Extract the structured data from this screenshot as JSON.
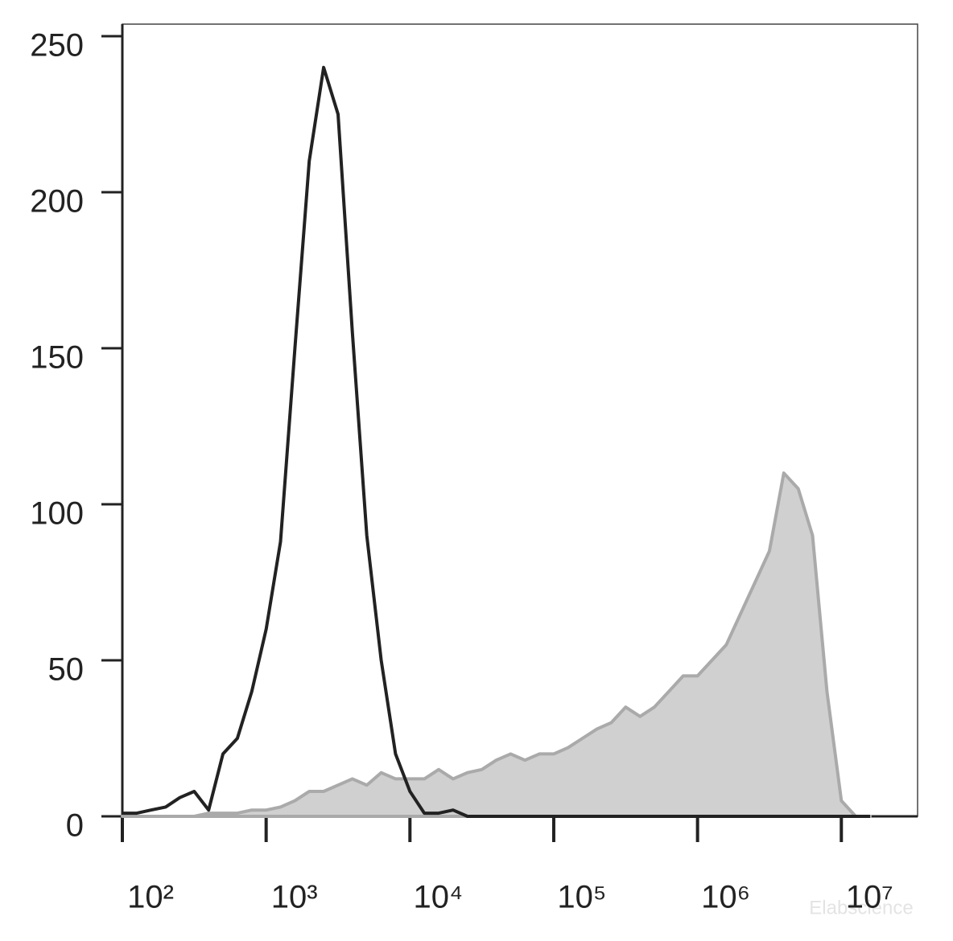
{
  "chart_data": {
    "type": "line",
    "x": [
      100,
      126,
      158,
      200,
      251,
      316,
      398,
      501,
      631,
      794,
      1000,
      1259,
      1585,
      1995,
      2512,
      3162,
      3981,
      5012,
      6310,
      7943,
      10000,
      12589,
      15849,
      19953,
      25119,
      31623,
      39811,
      50119,
      63096,
      79433,
      100000,
      125893,
      158489,
      199526,
      251189,
      316228,
      398107,
      501187,
      630957,
      794328,
      1000000,
      1258925,
      1584893,
      1995262,
      2511886,
      3162278,
      3981072,
      5011872,
      6309573,
      7943282,
      10000000,
      12589254,
      15848932
    ],
    "series": [
      {
        "color": "#222222",
        "values": [
          1,
          1,
          2,
          3,
          6,
          8,
          2,
          20,
          25,
          40,
          60,
          88,
          150,
          210,
          240,
          225,
          155,
          90,
          50,
          20,
          8,
          1,
          1,
          2,
          0,
          0,
          0,
          0,
          0,
          0,
          0,
          0,
          0,
          0,
          0,
          0,
          0,
          0,
          0,
          0,
          0,
          0,
          0,
          0,
          0,
          0,
          0,
          0,
          0,
          0,
          0,
          0,
          0
        ]
      },
      {
        "color": "#aaaaaa",
        "fill": "#d0d0d0",
        "values": [
          0,
          0,
          0,
          0,
          0,
          0,
          1,
          1,
          1,
          2,
          2,
          3,
          5,
          8,
          8,
          10,
          12,
          10,
          14,
          12,
          12,
          12,
          15,
          12,
          14,
          15,
          18,
          20,
          18,
          20,
          20,
          22,
          25,
          28,
          30,
          35,
          32,
          35,
          40,
          45,
          45,
          50,
          55,
          65,
          75,
          85,
          110,
          105,
          90,
          40,
          5,
          0,
          0
        ]
      }
    ],
    "log_x": true,
    "xlim": [
      100,
      33900000
    ],
    "xticks": [
      {
        "value": 100,
        "label": "10²"
      },
      {
        "value": 1000,
        "label": "10³"
      },
      {
        "value": 10000,
        "label": "10⁴"
      },
      {
        "value": 100000,
        "label": "10⁵"
      },
      {
        "value": 1000000,
        "label": "10⁶"
      },
      {
        "value": 10000000,
        "label": "10⁷"
      }
    ],
    "ylim": [
      0,
      250
    ],
    "yticks": [
      0,
      50,
      100,
      150,
      200,
      250
    ],
    "watermark": "Elabscience"
  }
}
